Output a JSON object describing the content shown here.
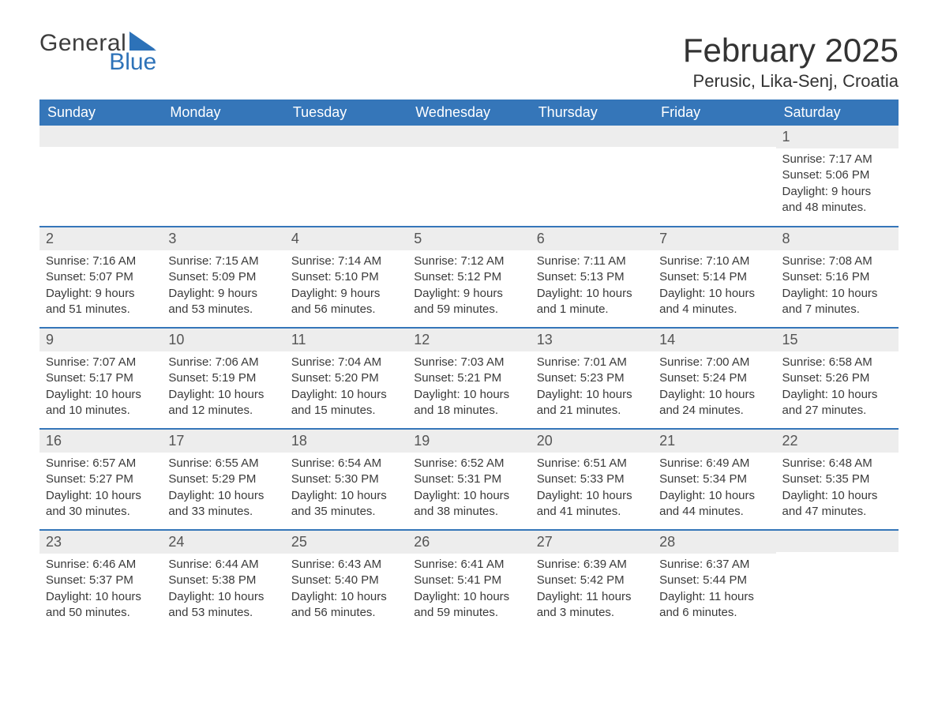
{
  "brand": {
    "word1": "General",
    "word2": "Blue",
    "flag_color": "#2d72b8"
  },
  "title": "February 2025",
  "location": "Perusic, Lika-Senj, Croatia",
  "colors": {
    "header_bg": "#3576b9",
    "header_text": "#ffffff",
    "row_border": "#3576b9",
    "daynum_bg": "#ededed",
    "text": "#333333"
  },
  "layout": {
    "leading_blanks": 6,
    "weeks": 5
  },
  "weekdays": [
    "Sunday",
    "Monday",
    "Tuesday",
    "Wednesday",
    "Thursday",
    "Friday",
    "Saturday"
  ],
  "days": [
    {
      "n": 1,
      "sunrise": "7:17 AM",
      "sunset": "5:06 PM",
      "daylight": "9 hours and 48 minutes."
    },
    {
      "n": 2,
      "sunrise": "7:16 AM",
      "sunset": "5:07 PM",
      "daylight": "9 hours and 51 minutes."
    },
    {
      "n": 3,
      "sunrise": "7:15 AM",
      "sunset": "5:09 PM",
      "daylight": "9 hours and 53 minutes."
    },
    {
      "n": 4,
      "sunrise": "7:14 AM",
      "sunset": "5:10 PM",
      "daylight": "9 hours and 56 minutes."
    },
    {
      "n": 5,
      "sunrise": "7:12 AM",
      "sunset": "5:12 PM",
      "daylight": "9 hours and 59 minutes."
    },
    {
      "n": 6,
      "sunrise": "7:11 AM",
      "sunset": "5:13 PM",
      "daylight": "10 hours and 1 minute."
    },
    {
      "n": 7,
      "sunrise": "7:10 AM",
      "sunset": "5:14 PM",
      "daylight": "10 hours and 4 minutes."
    },
    {
      "n": 8,
      "sunrise": "7:08 AM",
      "sunset": "5:16 PM",
      "daylight": "10 hours and 7 minutes."
    },
    {
      "n": 9,
      "sunrise": "7:07 AM",
      "sunset": "5:17 PM",
      "daylight": "10 hours and 10 minutes."
    },
    {
      "n": 10,
      "sunrise": "7:06 AM",
      "sunset": "5:19 PM",
      "daylight": "10 hours and 12 minutes."
    },
    {
      "n": 11,
      "sunrise": "7:04 AM",
      "sunset": "5:20 PM",
      "daylight": "10 hours and 15 minutes."
    },
    {
      "n": 12,
      "sunrise": "7:03 AM",
      "sunset": "5:21 PM",
      "daylight": "10 hours and 18 minutes."
    },
    {
      "n": 13,
      "sunrise": "7:01 AM",
      "sunset": "5:23 PM",
      "daylight": "10 hours and 21 minutes."
    },
    {
      "n": 14,
      "sunrise": "7:00 AM",
      "sunset": "5:24 PM",
      "daylight": "10 hours and 24 minutes."
    },
    {
      "n": 15,
      "sunrise": "6:58 AM",
      "sunset": "5:26 PM",
      "daylight": "10 hours and 27 minutes."
    },
    {
      "n": 16,
      "sunrise": "6:57 AM",
      "sunset": "5:27 PM",
      "daylight": "10 hours and 30 minutes."
    },
    {
      "n": 17,
      "sunrise": "6:55 AM",
      "sunset": "5:29 PM",
      "daylight": "10 hours and 33 minutes."
    },
    {
      "n": 18,
      "sunrise": "6:54 AM",
      "sunset": "5:30 PM",
      "daylight": "10 hours and 35 minutes."
    },
    {
      "n": 19,
      "sunrise": "6:52 AM",
      "sunset": "5:31 PM",
      "daylight": "10 hours and 38 minutes."
    },
    {
      "n": 20,
      "sunrise": "6:51 AM",
      "sunset": "5:33 PM",
      "daylight": "10 hours and 41 minutes."
    },
    {
      "n": 21,
      "sunrise": "6:49 AM",
      "sunset": "5:34 PM",
      "daylight": "10 hours and 44 minutes."
    },
    {
      "n": 22,
      "sunrise": "6:48 AM",
      "sunset": "5:35 PM",
      "daylight": "10 hours and 47 minutes."
    },
    {
      "n": 23,
      "sunrise": "6:46 AM",
      "sunset": "5:37 PM",
      "daylight": "10 hours and 50 minutes."
    },
    {
      "n": 24,
      "sunrise": "6:44 AM",
      "sunset": "5:38 PM",
      "daylight": "10 hours and 53 minutes."
    },
    {
      "n": 25,
      "sunrise": "6:43 AM",
      "sunset": "5:40 PM",
      "daylight": "10 hours and 56 minutes."
    },
    {
      "n": 26,
      "sunrise": "6:41 AM",
      "sunset": "5:41 PM",
      "daylight": "10 hours and 59 minutes."
    },
    {
      "n": 27,
      "sunrise": "6:39 AM",
      "sunset": "5:42 PM",
      "daylight": "11 hours and 3 minutes."
    },
    {
      "n": 28,
      "sunrise": "6:37 AM",
      "sunset": "5:44 PM",
      "daylight": "11 hours and 6 minutes."
    }
  ],
  "labels": {
    "sunrise": "Sunrise:",
    "sunset": "Sunset:",
    "daylight": "Daylight:"
  }
}
